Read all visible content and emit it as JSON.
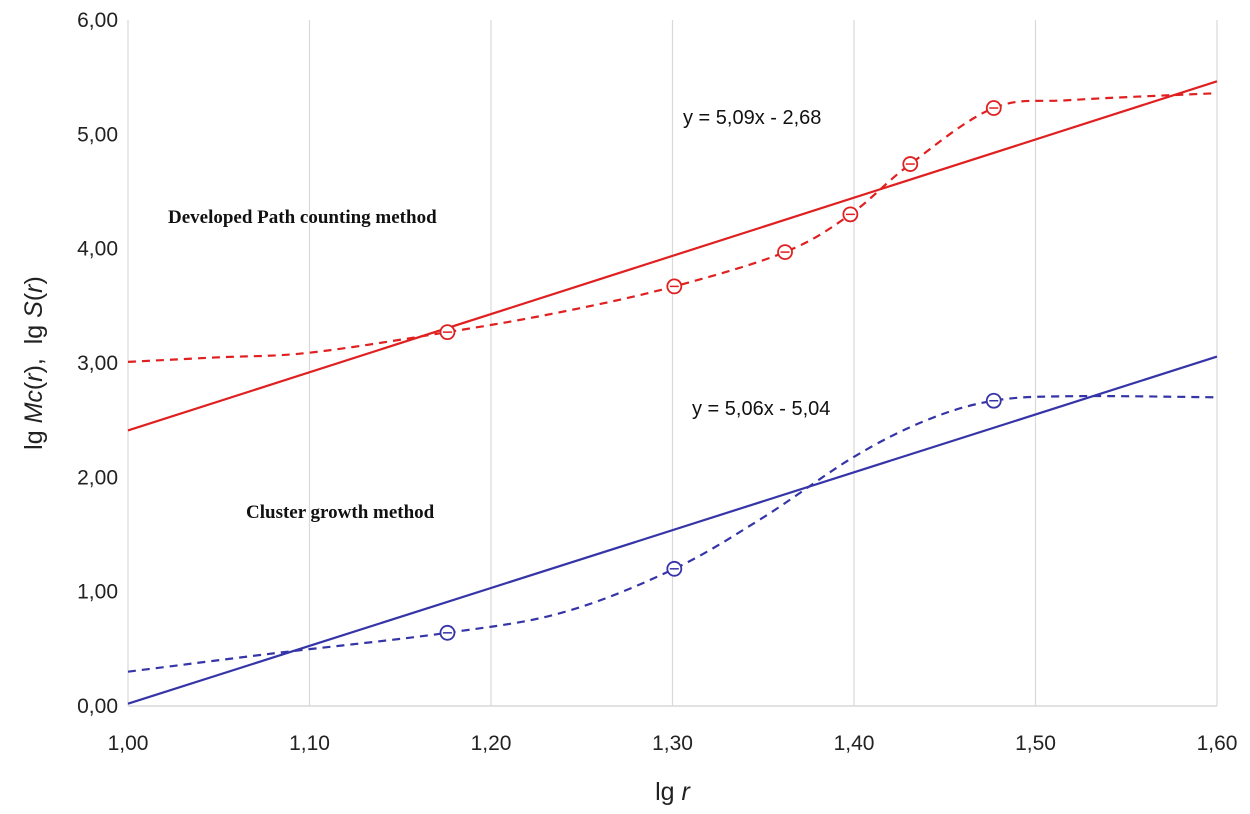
{
  "chart_data": {
    "type": "line",
    "title": "",
    "xlabel": {
      "prefix": "lg ",
      "var": "r"
    },
    "ylabel": {
      "p1": "lg ",
      "v1": "Mc",
      "p2": "(",
      "v2": "r",
      "p3": "),  lg ",
      "v3": "S",
      "p4": "(",
      "v5": "r",
      "p5": ")"
    },
    "xlim": [
      1.0,
      1.6
    ],
    "ylim": [
      0.0,
      6.0
    ],
    "x_ticks": [
      1.0,
      1.1,
      1.2,
      1.3,
      1.4,
      1.5,
      1.6
    ],
    "x_tick_labels": [
      "1,00",
      "1,10",
      "1,20",
      "1,30",
      "1,40",
      "1,50",
      "1,60"
    ],
    "y_ticks": [
      0,
      1,
      2,
      3,
      4,
      5,
      6
    ],
    "y_tick_labels": [
      "0,00",
      "1,00",
      "2,00",
      "3,00",
      "4,00",
      "5,00",
      "6,00"
    ],
    "grid": "vertical",
    "colors": {
      "red": "#e02020",
      "blue": "#3535a8",
      "grid": "#d9d9d9"
    },
    "series": [
      {
        "name": "Developed Path counting method",
        "color": "#e02020",
        "markers": [
          {
            "x": 1.176,
            "y": 3.27
          },
          {
            "x": 1.301,
            "y": 3.67
          },
          {
            "x": 1.362,
            "y": 3.97
          },
          {
            "x": 1.398,
            "y": 4.3
          },
          {
            "x": 1.431,
            "y": 4.74
          },
          {
            "x": 1.477,
            "y": 5.23
          }
        ],
        "curve": [
          {
            "x": 1.0,
            "y": 3.01
          },
          {
            "x": 1.05,
            "y": 3.05
          },
          {
            "x": 1.1,
            "y": 3.09
          },
          {
            "x": 1.176,
            "y": 3.27
          },
          {
            "x": 1.24,
            "y": 3.45
          },
          {
            "x": 1.301,
            "y": 3.67
          },
          {
            "x": 1.362,
            "y": 3.97
          },
          {
            "x": 1.398,
            "y": 4.3
          },
          {
            "x": 1.431,
            "y": 4.74
          },
          {
            "x": 1.477,
            "y": 5.23
          },
          {
            "x": 1.52,
            "y": 5.3
          },
          {
            "x": 1.6,
            "y": 5.36
          }
        ],
        "trendline": {
          "slope": 5.09,
          "intercept": -2.68,
          "equation": "y = 5,09x - 2,68"
        }
      },
      {
        "name": "Cluster growth method",
        "color": "#3535a8",
        "markers": [
          {
            "x": 1.176,
            "y": 0.64
          },
          {
            "x": 1.301,
            "y": 1.2
          },
          {
            "x": 1.477,
            "y": 2.67
          }
        ],
        "curve": [
          {
            "x": 1.0,
            "y": 0.3
          },
          {
            "x": 1.08,
            "y": 0.46
          },
          {
            "x": 1.176,
            "y": 0.64
          },
          {
            "x": 1.24,
            "y": 0.82
          },
          {
            "x": 1.301,
            "y": 1.2
          },
          {
            "x": 1.35,
            "y": 1.65
          },
          {
            "x": 1.4,
            "y": 2.18
          },
          {
            "x": 1.44,
            "y": 2.5
          },
          {
            "x": 1.477,
            "y": 2.67
          },
          {
            "x": 1.52,
            "y": 2.71
          },
          {
            "x": 1.6,
            "y": 2.7
          }
        ],
        "trendline": {
          "slope": 5.06,
          "intercept": -5.04,
          "equation": "y = 5,06x - 5,04"
        }
      }
    ],
    "annotations": {
      "red_equation": "y = 5,09x - 2,68",
      "blue_equation": "y = 5,06x - 5,04",
      "red_method": "Developed Path counting method",
      "blue_method": "Cluster growth method"
    }
  }
}
